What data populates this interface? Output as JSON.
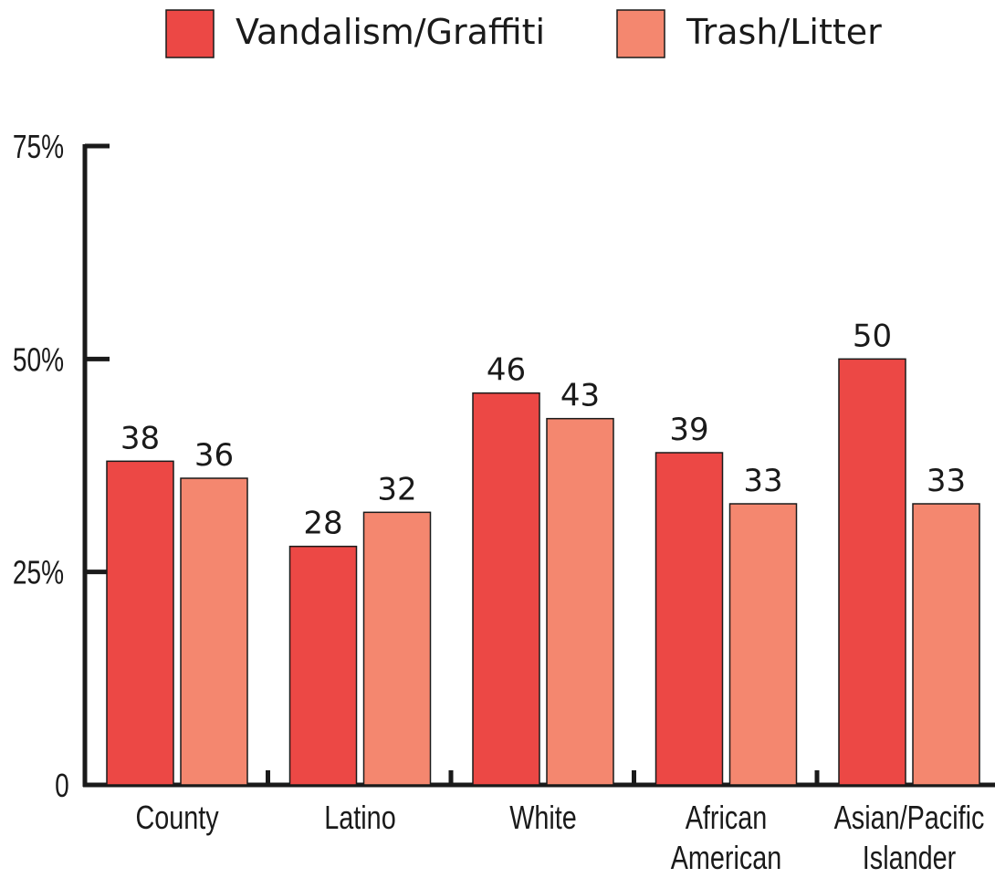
{
  "chart_data": {
    "type": "bar",
    "categories": [
      [
        "County"
      ],
      [
        "Latino"
      ],
      [
        "White"
      ],
      [
        "African",
        "American"
      ],
      [
        "Asian/Pacific",
        "Islander"
      ]
    ],
    "series": [
      {
        "name": "Vandalism/Graffiti",
        "color": "#ec4845",
        "values": [
          38,
          28,
          46,
          39,
          50
        ]
      },
      {
        "name": "Trash/Litter",
        "color": "#f4876f",
        "values": [
          36,
          32,
          43,
          33,
          33
        ]
      }
    ],
    "yticks": [
      {
        "value": 0,
        "label": "0"
      },
      {
        "value": 25,
        "label": "25%"
      },
      {
        "value": 50,
        "label": "50%"
      },
      {
        "value": 75,
        "label": "75%"
      }
    ],
    "ylim": [
      0,
      75
    ],
    "legend_position": "top",
    "grid": false,
    "value_labels": true,
    "title": "",
    "xlabel": "",
    "ylabel": ""
  }
}
